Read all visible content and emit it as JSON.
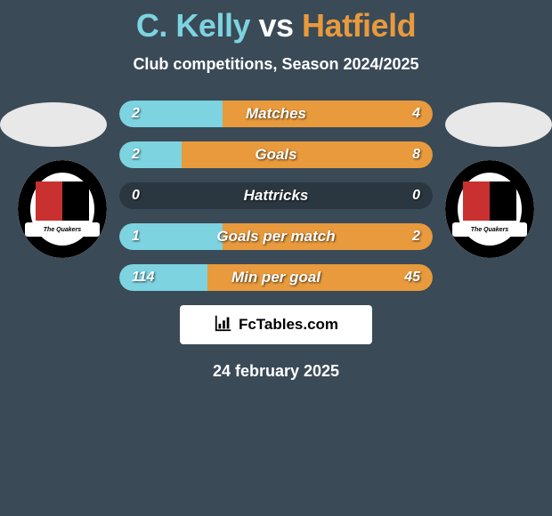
{
  "background_color": "#3a4a57",
  "title": {
    "player1": "C. Kelly",
    "vs": "vs",
    "player2": "Hatfield",
    "player1_color": "#7dd3e0",
    "vs_color": "#ffffff",
    "player2_color": "#e89a3c"
  },
  "subtitle": {
    "text": "Club competitions, Season 2024/2025",
    "color": "#ffffff"
  },
  "rows": [
    {
      "label": "Matches",
      "left_val": "2",
      "right_val": "4",
      "left_pct": 33,
      "right_pct": 67
    },
    {
      "label": "Goals",
      "left_val": "2",
      "right_val": "8",
      "left_pct": 20,
      "right_pct": 80
    },
    {
      "label": "Hattricks",
      "left_val": "0",
      "right_val": "0",
      "left_pct": 0,
      "right_pct": 0
    },
    {
      "label": "Goals per match",
      "left_val": "1",
      "right_val": "2",
      "left_pct": 33,
      "right_pct": 67
    },
    {
      "label": "Min per goal",
      "left_val": "114",
      "right_val": "45",
      "left_pct": 28,
      "right_pct": 72
    }
  ],
  "row_style": {
    "track_color": "#2a3640",
    "left_color": "#7dd3e0",
    "right_color": "#e89a3c",
    "label_color": "#ffffff",
    "val_color": "#ffffff"
  },
  "avatar": {
    "bg": "#e8e8e8"
  },
  "crest": {
    "bg": "#ffffff",
    "ring": "#000000",
    "banner_bg": "#ffffff",
    "banner_text": "The Quakers",
    "banner_text_color": "#000000",
    "half_left": "#c93030",
    "half_right": "#000000"
  },
  "attribution": {
    "bg": "#ffffff",
    "text": "FcTables.com",
    "text_color": "#000000",
    "icon_color": "#000000"
  },
  "date": {
    "text": "24 february 2025",
    "color": "#ffffff"
  }
}
